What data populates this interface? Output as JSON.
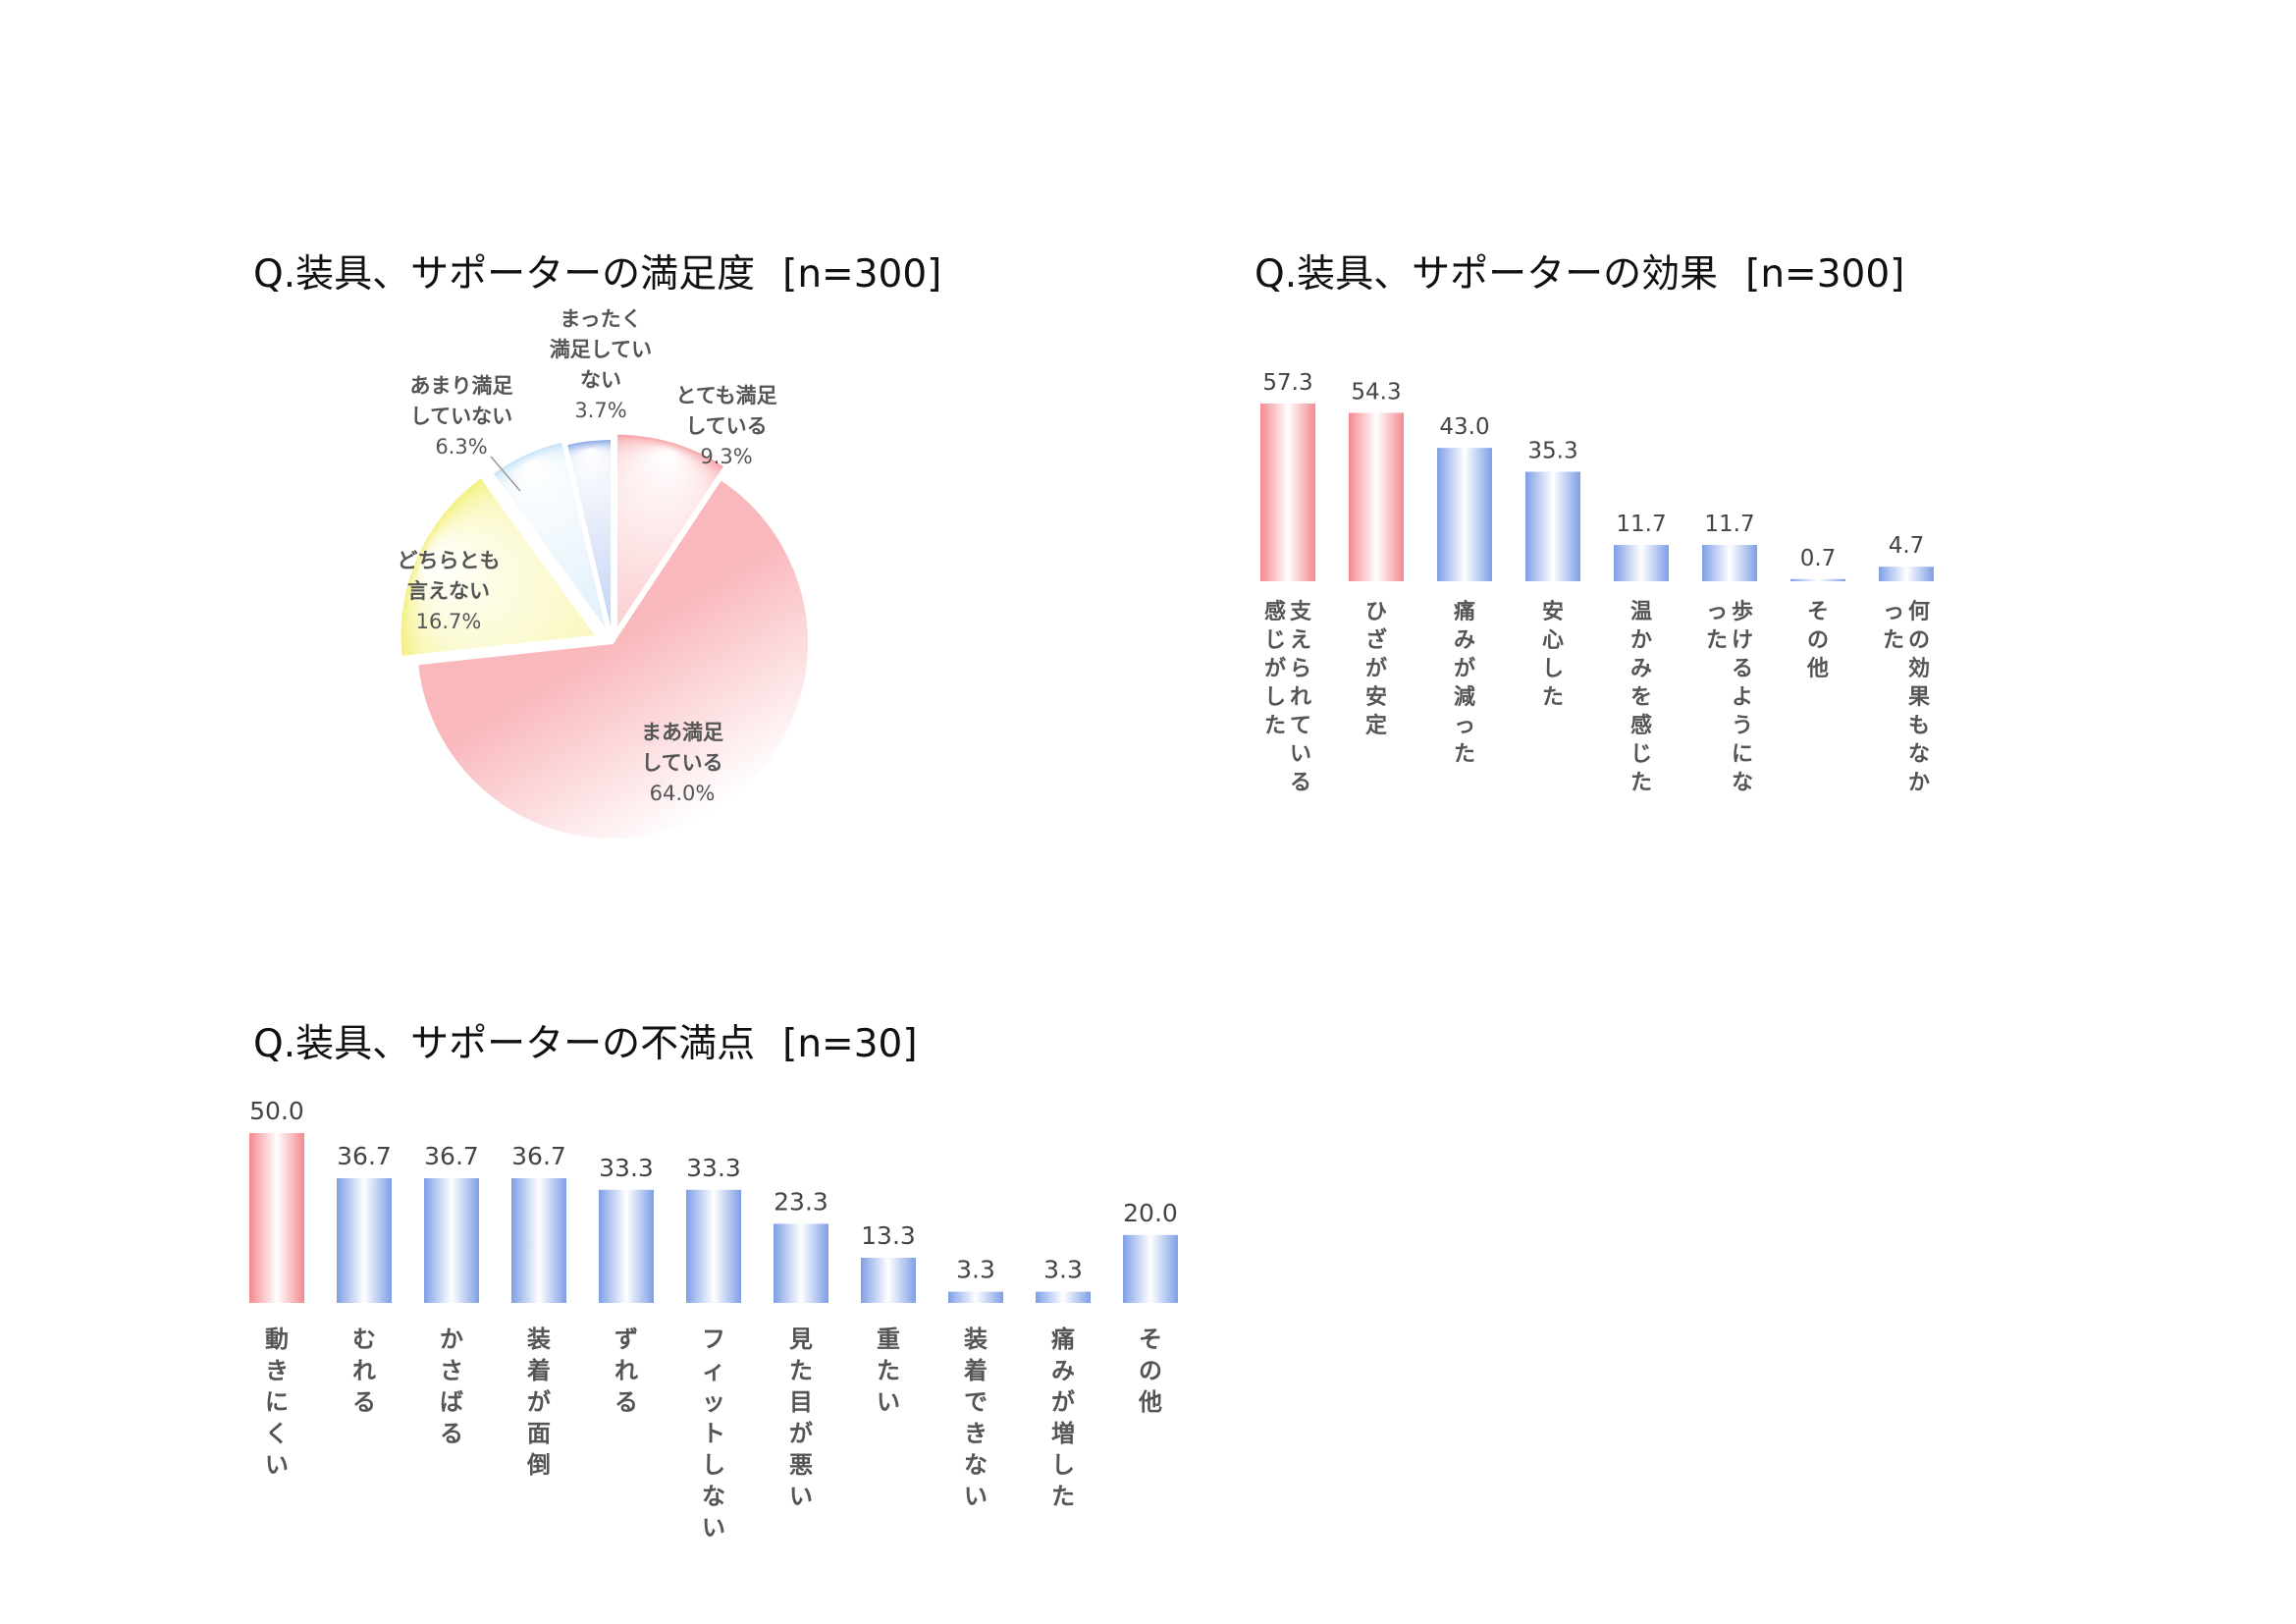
{
  "chart_data": [
    {
      "type": "pie",
      "title": "Q.装具、サポーターの満足度",
      "n_label": "[n=300]",
      "slices": [
        {
          "label": "とても満足\nしている\n9.3%",
          "value": 9.3,
          "color": "#f79a9f"
        },
        {
          "label": "まあ満足\nしている\n64.0%",
          "value": 64.0,
          "color": "#f9b8bc"
        },
        {
          "label": "どちらとも\n言えない\n16.7%",
          "value": 16.7,
          "color": "#f3f07a"
        },
        {
          "label": "あまり満足\nしていない\n6.3%",
          "value": 6.3,
          "color": "#bfe0f6"
        },
        {
          "label": "まったく\n満足してい\nない\n3.7%",
          "value": 3.7,
          "color": "#7e9fe6"
        }
      ]
    },
    {
      "type": "bar",
      "title": "Q.装具、サポーターの効果",
      "n_label": "[n=300]",
      "categories": [
        "支えられている感じがした",
        "ひざが安定",
        "痛みが減った",
        "安心した",
        "温かみを感じた",
        "歩けるようになった",
        "その他",
        "何の効果もなかった"
      ],
      "values": [
        57.3,
        54.3,
        43.0,
        35.3,
        11.7,
        11.7,
        0.7,
        4.7
      ],
      "value_labels": [
        "57.3",
        "54.3",
        "43.0",
        "35.3",
        "11.7",
        "11.7",
        "0.7",
        "4.7"
      ],
      "highlight": [
        0,
        1
      ],
      "colors": {
        "highlight": "#f4898f",
        "normal": "#7e9fe6"
      }
    },
    {
      "type": "bar",
      "title": "Q.装具、サポーターの不満点",
      "n_label": "[n=30]",
      "categories": [
        "動きにくい",
        "むれる",
        "かさばる",
        "装着が面倒",
        "ずれる",
        "フィットしない",
        "見た目が悪い",
        "重たい",
        "装着できない",
        "痛みが増した",
        "その他"
      ],
      "values": [
        50.0,
        36.7,
        36.7,
        36.7,
        33.3,
        33.3,
        23.3,
        13.3,
        3.3,
        3.3,
        20.0
      ],
      "value_labels": [
        "50.0",
        "36.7",
        "36.7",
        "36.7",
        "33.3",
        "33.3",
        "23.3",
        "13.3",
        "3.3",
        "3.3",
        "20.0"
      ],
      "highlight": [
        0
      ],
      "colors": {
        "highlight": "#f4898f",
        "normal": "#7e9fe6"
      }
    }
  ]
}
